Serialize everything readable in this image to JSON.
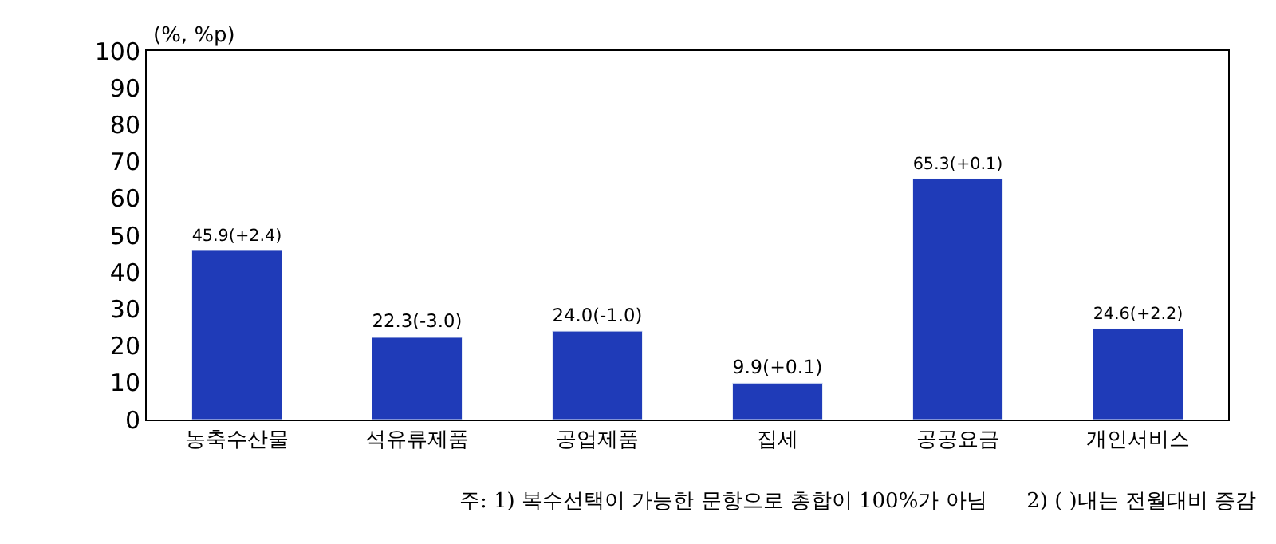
{
  "chart_data": {
    "type": "bar",
    "ylabel": "(%, %p)",
    "categories": [
      "농축수산물",
      "석유류제품",
      "공업제품",
      "집세",
      "공공요금",
      "개인서비스"
    ],
    "values": [
      45.9,
      22.3,
      24.0,
      9.9,
      65.3,
      24.6
    ],
    "value_labels": [
      "45.9(+2.4)",
      "22.3(-3.0)",
      "24.0(-1.0)",
      "9.9(+0.1)",
      "65.3(+0.1)",
      "24.6(+2.2)"
    ],
    "color": "#1f3bb8",
    "ylim": [
      0,
      100
    ],
    "yticks": [
      0,
      10,
      20,
      30,
      40,
      50,
      60,
      70,
      80,
      90,
      100
    ],
    "legend": false,
    "annotations": [
      "주: 1) 복수선택이 가능한 문항으로 총합이 100%가 아님      2) ( )내는 전월대비 증감"
    ]
  }
}
